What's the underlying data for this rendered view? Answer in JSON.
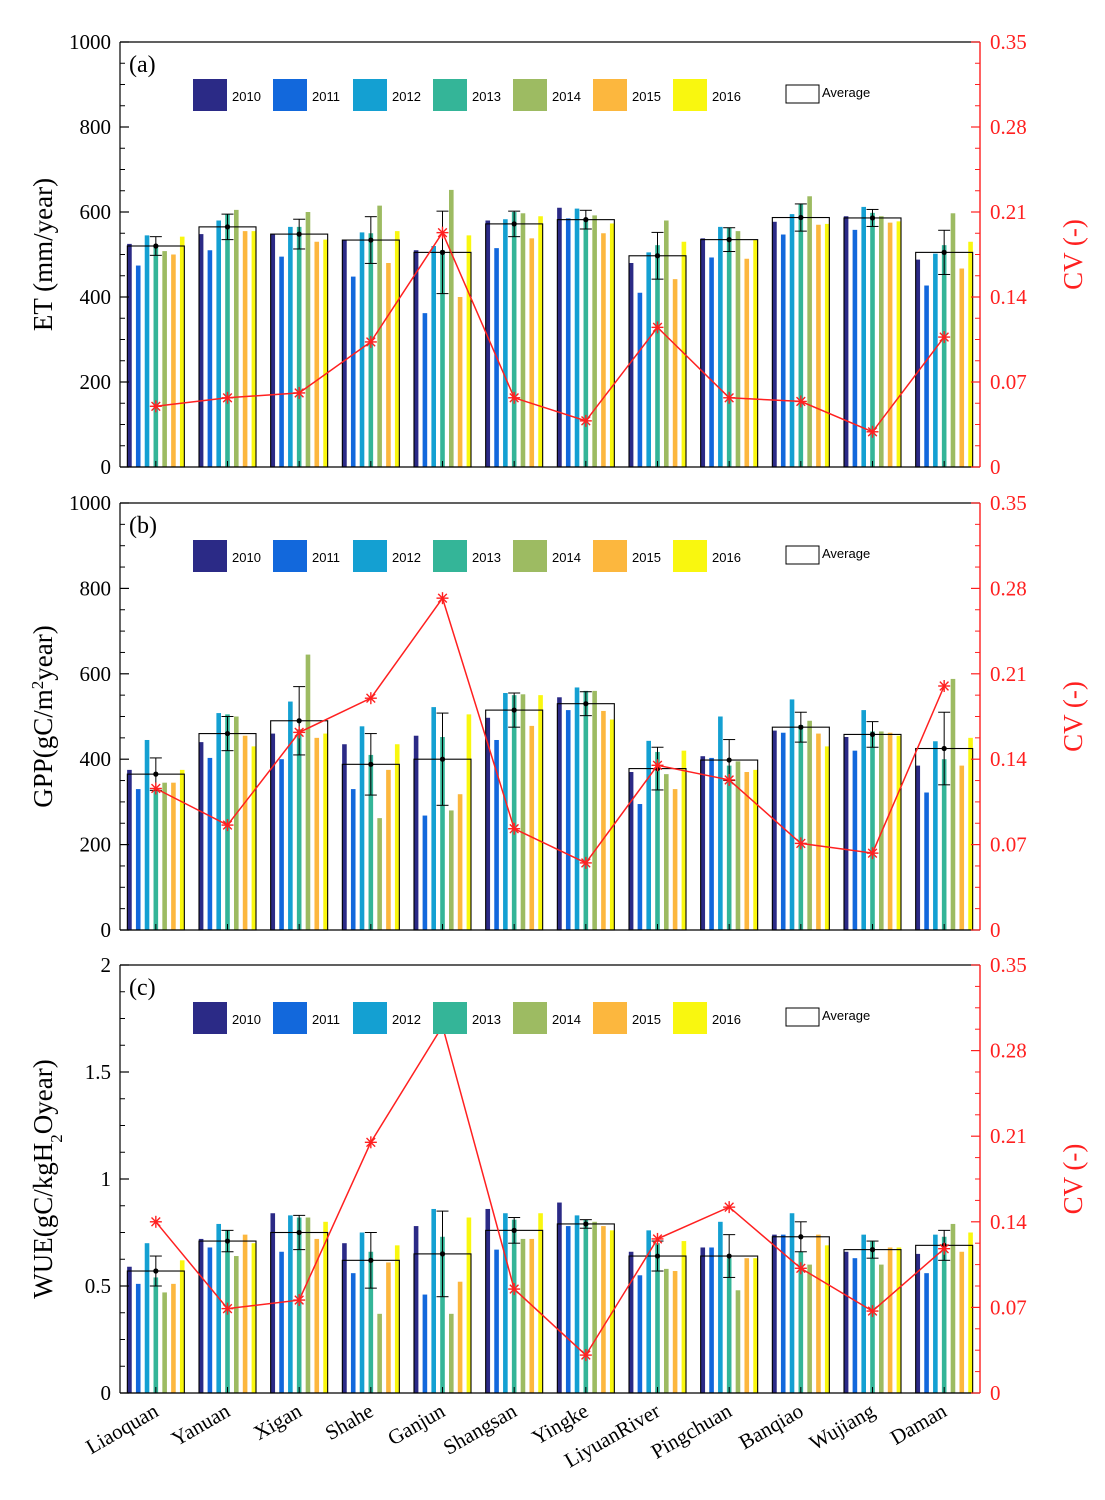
{
  "figure": {
    "sites": [
      "Liaoquan",
      "Yanuan",
      "Xigan",
      "Shahe",
      "Ganjun",
      "Shangsan",
      "Yingke",
      "LiyuanRiver",
      "Pingchuan",
      "Banqiao",
      "Wujiang",
      "Daman"
    ],
    "years": [
      "2010",
      "2011",
      "2012",
      "2013",
      "2014",
      "2015",
      "2016"
    ],
    "year_colors": [
      "#2b2a86",
      "#1268dc",
      "#14a0d2",
      "#34b598",
      "#9dbb62",
      "#fcb73e",
      "#f9f70f"
    ],
    "average_label": "Average",
    "cv_color": "#ff2020"
  },
  "chart_data": [
    {
      "type": "bar",
      "panel_label": "(a)",
      "ylabel": "ET (mm/year)",
      "ylabel_right": "CV (-)",
      "ylim": [
        0,
        1000
      ],
      "yticks": [
        0,
        200,
        400,
        600,
        800,
        1000
      ],
      "ytick_labels": [
        "0",
        "200",
        "400",
        "600",
        "800",
        "1000"
      ],
      "y2lim": [
        0,
        0.35
      ],
      "y2ticks": [
        0,
        0.07,
        0.14,
        0.21,
        0.28,
        0.35
      ],
      "y2tick_labels": [
        "0",
        "0.07",
        "0.14",
        "0.21",
        "0.28",
        "0.35"
      ],
      "series": [
        {
          "name": "2010",
          "values": [
            525,
            548,
            547,
            535,
            510,
            580,
            610,
            480,
            538,
            577,
            590,
            488
          ]
        },
        {
          "name": "2011",
          "values": [
            474,
            510,
            495,
            448,
            362,
            515,
            585,
            410,
            493,
            547,
            558,
            427
          ]
        },
        {
          "name": "2012",
          "values": [
            545,
            580,
            565,
            552,
            520,
            583,
            608,
            505,
            565,
            595,
            612,
            502
          ]
        },
        {
          "name": "2013",
          "values": [
            522,
            595,
            565,
            550,
            510,
            600,
            585,
            522,
            563,
            620,
            598,
            522
          ]
        },
        {
          "name": "2014",
          "values": [
            508,
            605,
            600,
            615,
            652,
            597,
            592,
            580,
            555,
            637,
            590,
            597
          ]
        },
        {
          "name": "2015",
          "values": [
            500,
            555,
            530,
            480,
            400,
            538,
            550,
            442,
            490,
            570,
            575,
            467
          ]
        },
        {
          "name": "2016",
          "values": [
            542,
            555,
            535,
            555,
            545,
            590,
            573,
            530,
            535,
            572,
            578,
            530
          ]
        }
      ],
      "average": [
        520,
        565,
        548,
        534,
        505,
        572,
        582,
        497,
        535,
        587,
        586,
        505
      ],
      "average_err": [
        22,
        30,
        35,
        55,
        97,
        30,
        22,
        55,
        28,
        32,
        20,
        52
      ],
      "cv": [
        0.05,
        0.057,
        0.061,
        0.103,
        0.193,
        0.057,
        0.038,
        0.115,
        0.057,
        0.054,
        0.029,
        0.107
      ]
    },
    {
      "type": "bar",
      "panel_label": "(b)",
      "ylabel": "GPP(gC/m",
      "ylabel_sup": "2",
      "ylabel_tail": "year)",
      "ylabel_right": "CV (-)",
      "ylim": [
        0,
        1000
      ],
      "yticks": [
        0,
        200,
        400,
        600,
        800,
        1000
      ],
      "ytick_labels": [
        "0",
        "200",
        "400",
        "600",
        "800",
        "1000"
      ],
      "y2lim": [
        0,
        0.35
      ],
      "y2ticks": [
        0,
        0.07,
        0.14,
        0.21,
        0.28,
        0.35
      ],
      "y2tick_labels": [
        "0",
        "0.07",
        "0.14",
        "0.21",
        "0.28",
        "0.35"
      ],
      "series": [
        {
          "name": "2010",
          "values": [
            375,
            440,
            460,
            435,
            455,
            497,
            545,
            370,
            407,
            467,
            452,
            385
          ]
        },
        {
          "name": "2011",
          "values": [
            330,
            403,
            400,
            330,
            268,
            445,
            515,
            295,
            403,
            462,
            420,
            322
          ]
        },
        {
          "name": "2012",
          "values": [
            445,
            508,
            535,
            477,
            522,
            555,
            568,
            443,
            500,
            540,
            515,
            442
          ]
        },
        {
          "name": "2013",
          "values": [
            330,
            505,
            470,
            410,
            452,
            550,
            560,
            417,
            385,
            480,
            465,
            400
          ]
        },
        {
          "name": "2014",
          "values": [
            345,
            500,
            645,
            262,
            280,
            552,
            560,
            365,
            395,
            490,
            465,
            588
          ]
        },
        {
          "name": "2015",
          "values": [
            345,
            455,
            450,
            375,
            318,
            478,
            513,
            330,
            370,
            460,
            462,
            385
          ]
        },
        {
          "name": "2016",
          "values": [
            375,
            430,
            460,
            435,
            505,
            550,
            493,
            420,
            375,
            430,
            455,
            450
          ]
        }
      ],
      "average": [
        365,
        460,
        490,
        388,
        400,
        515,
        530,
        378,
        398,
        475,
        458,
        425
      ],
      "average_err": [
        38,
        40,
        80,
        72,
        108,
        40,
        28,
        50,
        48,
        35,
        30,
        85
      ],
      "cv": [
        0.116,
        0.086,
        0.162,
        0.19,
        0.272,
        0.083,
        0.055,
        0.135,
        0.123,
        0.071,
        0.063,
        0.2
      ]
    },
    {
      "type": "bar",
      "panel_label": "(c)",
      "ylabel": "WUE(gC/kgH",
      "ylabel_sub": "2",
      "ylabel_tail": "Oyear)",
      "ylabel_right": "CV (-)",
      "ylim": [
        0,
        2
      ],
      "yticks": [
        0,
        0.5,
        1,
        1.5,
        2
      ],
      "ytick_labels": [
        "0",
        "0.5",
        "1",
        "1.5",
        "2"
      ],
      "y2lim": [
        0,
        0.35
      ],
      "y2ticks": [
        0,
        0.07,
        0.14,
        0.21,
        0.28,
        0.35
      ],
      "y2tick_labels": [
        "0",
        "0.07",
        "0.14",
        "0.21",
        "0.28",
        "0.35"
      ],
      "series": [
        {
          "name": "2010",
          "values": [
            0.59,
            0.72,
            0.84,
            0.7,
            0.78,
            0.86,
            0.89,
            0.66,
            0.68,
            0.74,
            0.66,
            0.65
          ]
        },
        {
          "name": "2011",
          "values": [
            0.51,
            0.68,
            0.66,
            0.56,
            0.46,
            0.67,
            0.78,
            0.55,
            0.68,
            0.74,
            0.63,
            0.56
          ]
        },
        {
          "name": "2012",
          "values": [
            0.7,
            0.79,
            0.83,
            0.75,
            0.86,
            0.84,
            0.83,
            0.76,
            0.8,
            0.84,
            0.74,
            0.74
          ]
        },
        {
          "name": "2013",
          "values": [
            0.54,
            0.76,
            0.82,
            0.66,
            0.73,
            0.81,
            0.81,
            0.7,
            0.63,
            0.66,
            0.71,
            0.73
          ]
        },
        {
          "name": "2014",
          "values": [
            0.47,
            0.64,
            0.82,
            0.37,
            0.37,
            0.72,
            0.8,
            0.58,
            0.48,
            0.6,
            0.6,
            0.79
          ]
        },
        {
          "name": "2015",
          "values": [
            0.51,
            0.74,
            0.72,
            0.61,
            0.52,
            0.72,
            0.78,
            0.57,
            0.63,
            0.74,
            0.68,
            0.66
          ]
        },
        {
          "name": "2016",
          "values": [
            0.62,
            0.7,
            0.8,
            0.69,
            0.82,
            0.84,
            0.76,
            0.71,
            0.63,
            0.69,
            0.68,
            0.75
          ]
        }
      ],
      "average": [
        0.57,
        0.71,
        0.75,
        0.62,
        0.65,
        0.76,
        0.79,
        0.64,
        0.64,
        0.73,
        0.67,
        0.69
      ],
      "average_err": [
        0.07,
        0.05,
        0.08,
        0.13,
        0.2,
        0.06,
        0.02,
        0.07,
        0.1,
        0.07,
        0.04,
        0.07
      ],
      "cv": [
        0.14,
        0.069,
        0.076,
        0.205,
        0.3,
        0.085,
        0.031,
        0.126,
        0.152,
        0.102,
        0.067,
        0.118
      ]
    }
  ]
}
